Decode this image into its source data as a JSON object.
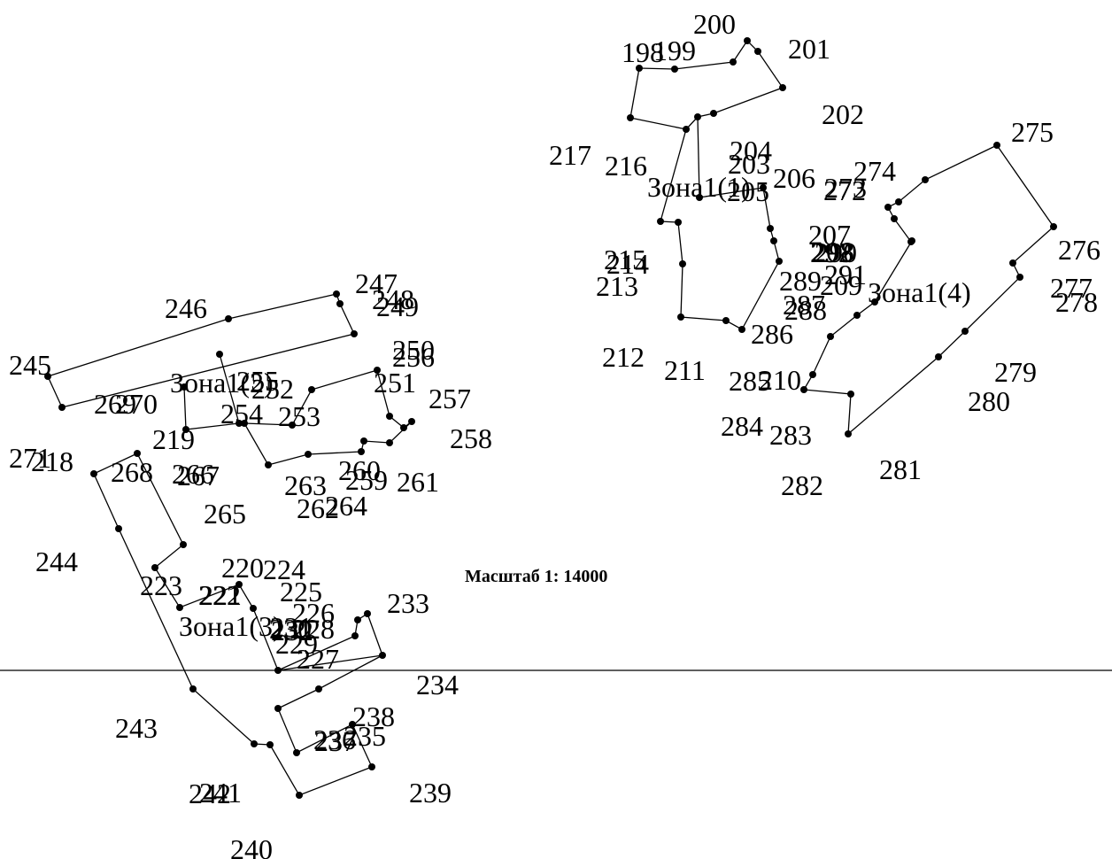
{
  "colors": {
    "background": "#ffffff",
    "ink": "#000000"
  },
  "scale_label": "Масштаб 1: 14000",
  "zone_labels": [
    "Зона1(1)",
    "Зона1(2)",
    "Зона1(3)",
    "Зона1(4)"
  ],
  "point_labels": [
    "198",
    "199",
    "200",
    "201",
    "202",
    "203",
    "204",
    "205",
    "206",
    "207",
    "208",
    "209",
    "210",
    "211",
    "212",
    "213",
    "214",
    "215",
    "216",
    "217",
    "218",
    "219",
    "220",
    "221",
    "222",
    "223",
    "224",
    "225",
    "226",
    "227",
    "228",
    "229",
    "230",
    "231",
    "232",
    "233",
    "234",
    "235",
    "236",
    "237",
    "238",
    "239",
    "240",
    "241",
    "242",
    "243",
    "244",
    "245",
    "246",
    "247",
    "248",
    "249",
    "250",
    "251",
    "252",
    "253",
    "254",
    "255",
    "256",
    "257",
    "258",
    "259",
    "260",
    "261",
    "262",
    "263",
    "264",
    "265",
    "266",
    "267",
    "268",
    "269",
    "270",
    "271",
    "272",
    "273",
    "274",
    "275",
    "276",
    "277",
    "278",
    "279",
    "280",
    "281",
    "282",
    "283",
    "284",
    "285",
    "286",
    "287",
    "288",
    "289",
    "290",
    "291",
    "292",
    "293"
  ]
}
